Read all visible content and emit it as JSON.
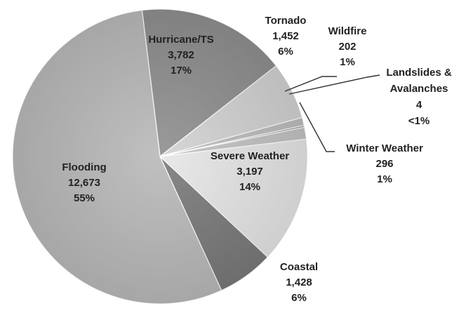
{
  "chart_data": {
    "type": "pie",
    "title": "",
    "unit": "",
    "slices": [
      {
        "name": "Hurricane/TS",
        "value": 3782,
        "value_label": "3,782",
        "percent_label": "17%",
        "color": "#8f8f8f"
      },
      {
        "name": "Tornado",
        "value": 1452,
        "value_label": "1,452",
        "percent_label": "6%",
        "color": "#d2d2d2"
      },
      {
        "name": "Wildfire",
        "value": 202,
        "value_label": "202",
        "percent_label": "1%",
        "color": "#bdbdbd"
      },
      {
        "name": "Landslides & Avalanches",
        "value": 4,
        "value_label": "4",
        "percent_label": "<1%",
        "color": "#a7a7a7"
      },
      {
        "name": "Winter Weather",
        "value": 296,
        "value_label": "296",
        "percent_label": "1%",
        "color": "#c3c3c3"
      },
      {
        "name": "Severe Weather",
        "value": 3197,
        "value_label": "3,197",
        "percent_label": "14%",
        "color": "#e6e6e6"
      },
      {
        "name": "Coastal",
        "value": 1428,
        "value_label": "1,428",
        "percent_label": "6%",
        "color": "#7a7a7a"
      },
      {
        "name": "Flooding",
        "value": 12673,
        "value_label": "12,673",
        "percent_label": "55%",
        "color": "#b9b9b9"
      }
    ]
  }
}
